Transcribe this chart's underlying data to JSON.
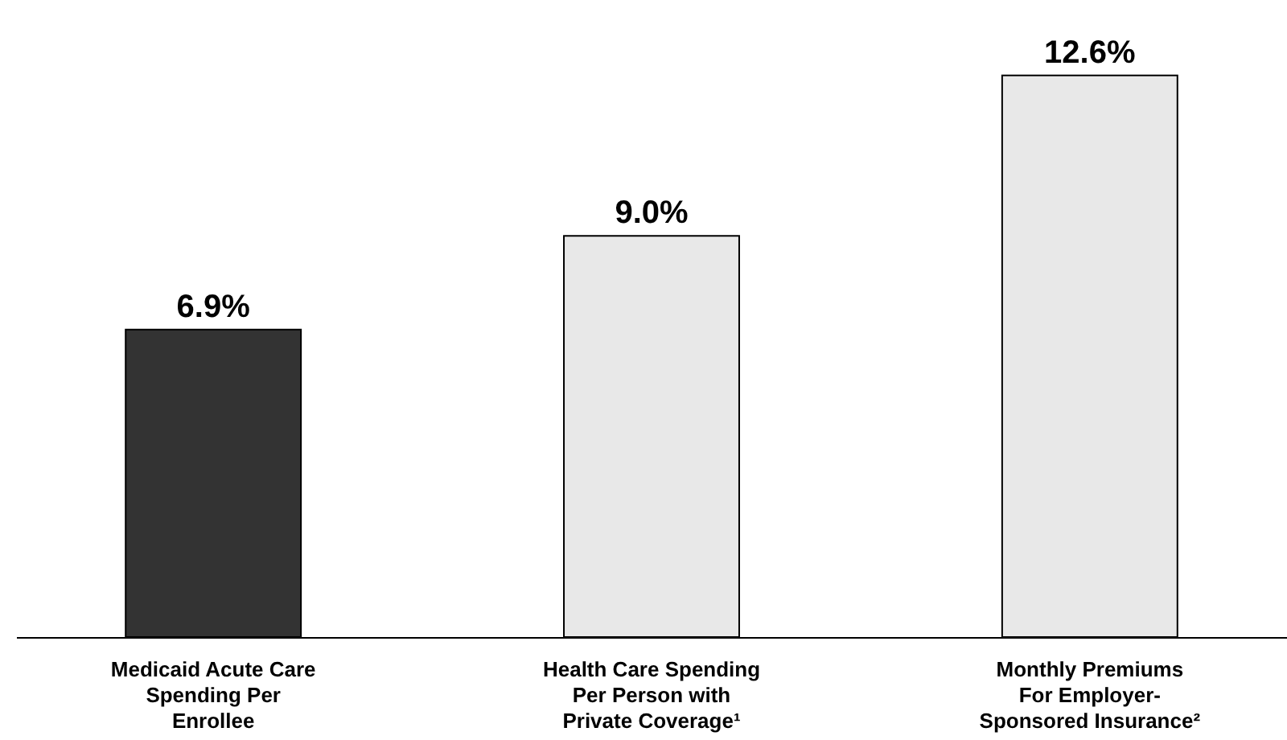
{
  "chart_data": {
    "type": "bar",
    "categories": [
      "Medicaid Acute Care\nSpending Per\nEnrollee",
      "Health Care Spending\nPer Person with\nPrivate Coverage¹",
      "Monthly Premiums\nFor Employer-\nSponsored Insurance²"
    ],
    "values": [
      6.9,
      9.0,
      12.6
    ],
    "colors": [
      "#333333",
      "#e8e8e8",
      "#e8e8e8"
    ],
    "value_labels": [
      "6.9%",
      "9.0%",
      "12.6%"
    ],
    "grid": false
  }
}
